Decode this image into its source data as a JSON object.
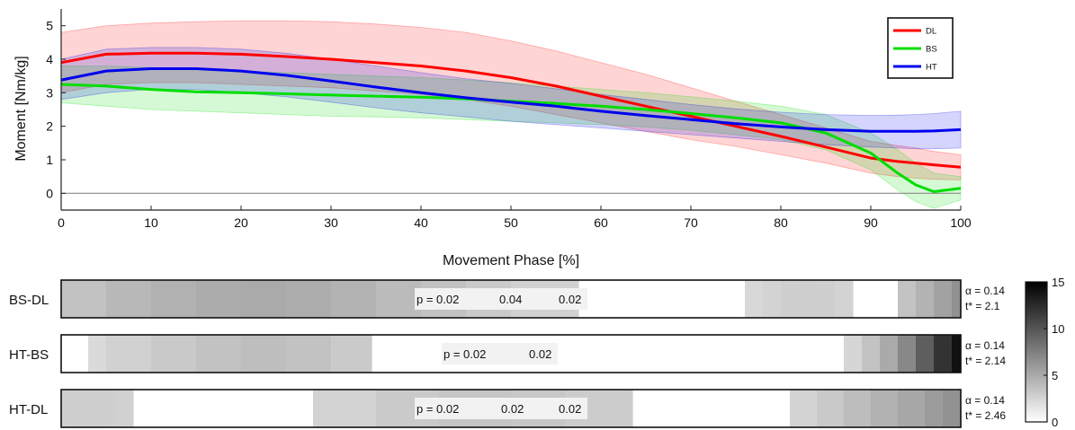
{
  "chart_data": [
    {
      "type": "line",
      "xlabel": "Movement Phase [%]",
      "ylabel": "Moment [Nm/kg]",
      "xlim": [
        0,
        100
      ],
      "ylim": [
        -0.5,
        5.5
      ],
      "xticks": [
        0,
        10,
        20,
        30,
        40,
        50,
        60,
        70,
        80,
        90,
        100
      ],
      "yticks": [
        0,
        1,
        2,
        3,
        4,
        5
      ],
      "zero_line": true,
      "legend_position": "top-right",
      "x": [
        0,
        5,
        10,
        15,
        20,
        25,
        30,
        35,
        40,
        45,
        50,
        55,
        60,
        65,
        70,
        75,
        80,
        85,
        90,
        93,
        95,
        97,
        100
      ],
      "series": [
        {
          "name": "DL",
          "color": "#ff0000",
          "values": [
            3.9,
            4.15,
            4.18,
            4.18,
            4.15,
            4.08,
            4.0,
            3.9,
            3.8,
            3.65,
            3.45,
            3.2,
            2.9,
            2.6,
            2.3,
            2.0,
            1.7,
            1.38,
            1.05,
            0.95,
            0.9,
            0.85,
            0.78
          ],
          "upper": [
            4.8,
            5.0,
            5.08,
            5.12,
            5.15,
            5.15,
            5.12,
            5.05,
            4.95,
            4.8,
            4.55,
            4.25,
            3.9,
            3.55,
            3.15,
            2.75,
            2.35,
            1.95,
            1.55,
            1.42,
            1.35,
            1.25,
            1.15
          ],
          "lower": [
            3.0,
            3.25,
            3.3,
            3.3,
            3.25,
            3.2,
            3.15,
            3.05,
            2.95,
            2.8,
            2.6,
            2.35,
            2.1,
            1.85,
            1.6,
            1.4,
            1.15,
            0.9,
            0.6,
            0.5,
            0.45,
            0.42,
            0.4
          ]
        },
        {
          "name": "BS",
          "color": "#00dd00",
          "values": [
            3.25,
            3.2,
            3.1,
            3.03,
            3.0,
            2.97,
            2.93,
            2.9,
            2.87,
            2.82,
            2.75,
            2.68,
            2.6,
            2.5,
            2.38,
            2.25,
            2.1,
            1.8,
            1.2,
            0.6,
            0.25,
            0.05,
            0.15
          ],
          "upper": [
            3.8,
            3.8,
            3.75,
            3.7,
            3.65,
            3.6,
            3.55,
            3.5,
            3.45,
            3.38,
            3.3,
            3.2,
            3.1,
            3.0,
            2.88,
            2.75,
            2.6,
            2.35,
            1.8,
            1.3,
            0.9,
            0.6,
            0.5
          ],
          "lower": [
            2.7,
            2.6,
            2.5,
            2.45,
            2.4,
            2.35,
            2.3,
            2.28,
            2.25,
            2.2,
            2.15,
            2.1,
            2.05,
            1.98,
            1.88,
            1.75,
            1.6,
            1.3,
            0.7,
            0.1,
            -0.25,
            -0.45,
            -0.2
          ]
        },
        {
          "name": "HT",
          "color": "#0000ee",
          "values": [
            3.38,
            3.65,
            3.72,
            3.72,
            3.65,
            3.52,
            3.35,
            3.17,
            3.0,
            2.85,
            2.72,
            2.6,
            2.45,
            2.32,
            2.2,
            2.08,
            1.98,
            1.9,
            1.85,
            1.85,
            1.85,
            1.86,
            1.9
          ],
          "upper": [
            4.0,
            4.3,
            4.35,
            4.35,
            4.3,
            4.18,
            4.0,
            3.8,
            3.6,
            3.42,
            3.28,
            3.12,
            2.95,
            2.8,
            2.65,
            2.52,
            2.42,
            2.35,
            2.32,
            2.33,
            2.35,
            2.38,
            2.45
          ],
          "lower": [
            2.8,
            3.0,
            3.1,
            3.1,
            3.0,
            2.88,
            2.72,
            2.55,
            2.4,
            2.28,
            2.15,
            2.05,
            1.95,
            1.85,
            1.75,
            1.65,
            1.55,
            1.45,
            1.38,
            1.35,
            1.33,
            1.33,
            1.35
          ]
        }
      ]
    },
    {
      "type": "heatmap",
      "colorbar": {
        "min": 0,
        "max": 15,
        "ticks": [
          0,
          5,
          10,
          15
        ],
        "tick_labels": [
          "0",
          "5",
          "10",
          "15"
        ]
      },
      "rows": [
        {
          "label": "BS-DL",
          "alpha_text": "α = 0.14",
          "t_text": "t* = 2.1",
          "p_values": [
            "p = 0.02",
            "0.04",
            "0.02"
          ],
          "segments": [
            {
              "x": [
                0,
                5,
                10,
                15,
                20,
                25,
                30,
                35,
                40,
                45,
                50,
                57.5
              ],
              "values": [
                3.6,
                4.2,
                4.6,
                4.9,
                5.0,
                4.8,
                4.5,
                4.0,
                3.6,
                3.1,
                2.7,
                2.2
              ]
            },
            {
              "x": [
                76,
                78,
                80,
                82,
                84,
                86,
                88
              ],
              "values": [
                2.3,
                2.6,
                2.8,
                2.9,
                2.8,
                2.6,
                2.3
              ]
            },
            {
              "x": [
                93,
                95,
                97,
                99,
                100
              ],
              "values": [
                3.5,
                4.5,
                5.5,
                6.5,
                7.0
              ]
            }
          ]
        },
        {
          "label": "HT-BS",
          "alpha_text": "α = 0.14",
          "t_text": "t* = 2.14",
          "p_values": [
            "p = 0.02",
            "0.02"
          ],
          "segments": [
            {
              "x": [
                3,
                5,
                10,
                15,
                20,
                25,
                30,
                34.5
              ],
              "values": [
                2.2,
                2.7,
                3.2,
                3.6,
                3.8,
                3.6,
                3.1,
                2.6
              ]
            },
            {
              "x": [
                87,
                89,
                91,
                93,
                95,
                97,
                99,
                100
              ],
              "values": [
                2.4,
                3.5,
                5.0,
                7.0,
                9.5,
                12.0,
                14.0,
                15.0
              ]
            }
          ]
        },
        {
          "label": "HT-DL",
          "alpha_text": "α = 0.14",
          "t_text": "t* = 2.46",
          "p_values": [
            "p = 0.02",
            "0.02",
            "0.02"
          ],
          "segments": [
            {
              "x": [
                0,
                2,
                4,
                6,
                8
              ],
              "values": [
                2.8,
                2.9,
                2.8,
                2.7,
                2.5
              ]
            },
            {
              "x": [
                28,
                35,
                42,
                50,
                56,
                63.5
              ],
              "values": [
                2.6,
                3.1,
                3.4,
                3.3,
                3.0,
                2.5
              ]
            },
            {
              "x": [
                81,
                84,
                87,
                90,
                93,
                96,
                98,
                100
              ],
              "values": [
                2.6,
                3.2,
                3.9,
                4.6,
                5.2,
                5.9,
                6.4,
                7.0
              ]
            }
          ]
        }
      ]
    }
  ]
}
